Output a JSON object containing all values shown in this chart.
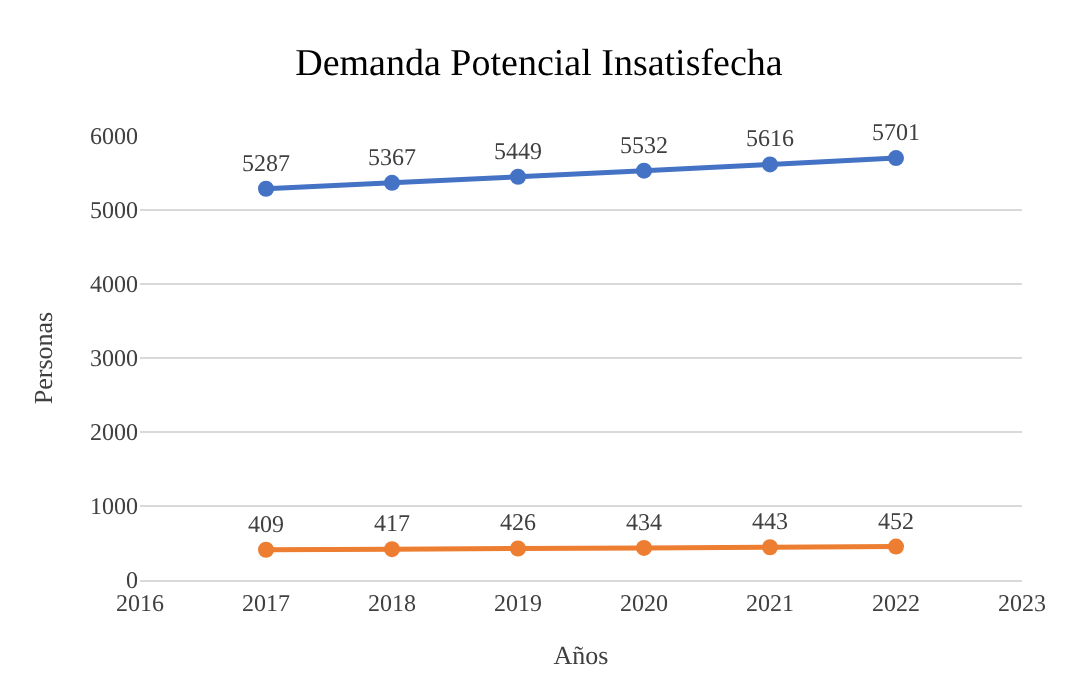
{
  "chart_data": {
    "type": "line",
    "title": "Demanda Potencial Insatisfecha",
    "xlabel": "Años",
    "ylabel": "Personas",
    "x": [
      2017,
      2018,
      2019,
      2020,
      2021,
      2022
    ],
    "series": [
      {
        "color": "#4472c4",
        "values": [
          5287,
          5367,
          5449,
          5532,
          5616,
          5701
        ]
      },
      {
        "color": "#ed7d31",
        "values": [
          409,
          417,
          426,
          434,
          443,
          452
        ]
      }
    ],
    "xlim": [
      2016,
      2023
    ],
    "xticks": [
      2016,
      2017,
      2018,
      2019,
      2020,
      2021,
      2022,
      2023
    ],
    "ylim": [
      0,
      6000
    ],
    "yticks": [
      0,
      1000,
      2000,
      3000,
      4000,
      5000,
      6000
    ],
    "grid": "y",
    "marker": "circle",
    "line_style": "solid",
    "data_labels": true
  }
}
